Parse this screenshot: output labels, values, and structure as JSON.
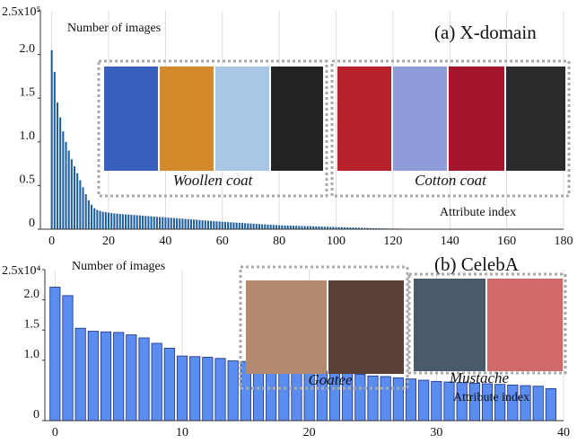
{
  "chart_data": [
    {
      "type": "bar",
      "title": "(a) X-domain",
      "y_label": "Number of images",
      "x_label": "Attribute index",
      "annotations": [
        "Woollen coat",
        "Cotton coat"
      ],
      "color": "#1f5f9e",
      "grid": true,
      "x": [
        0,
        1,
        2,
        3,
        4,
        5,
        6,
        7,
        8,
        9,
        10,
        11,
        12,
        13,
        14,
        15,
        16,
        17,
        18,
        19,
        20,
        21,
        22,
        23,
        24,
        25,
        26,
        27,
        28,
        29,
        30,
        31,
        32,
        33,
        34,
        35,
        36,
        37,
        38,
        39,
        40,
        41,
        42,
        43,
        44,
        45,
        46,
        47,
        48,
        49,
        50,
        51,
        52,
        53,
        54,
        55,
        56,
        57,
        58,
        59,
        60,
        61,
        62,
        63,
        64,
        65,
        66,
        67,
        68,
        69,
        70,
        71,
        72,
        73,
        74,
        75,
        76,
        77,
        78,
        79,
        80,
        81,
        82,
        83,
        84,
        85,
        86,
        87,
        88,
        89,
        90,
        91,
        92,
        93,
        94,
        95,
        96,
        97,
        98,
        99,
        100,
        101,
        102,
        103,
        104,
        105,
        106,
        107,
        108,
        109,
        110,
        111,
        112,
        113,
        114,
        115,
        116,
        117,
        118,
        119,
        120,
        121,
        122,
        123,
        124,
        125,
        126,
        127,
        128,
        129,
        130,
        131,
        132,
        133,
        134,
        135
      ],
      "values": [
        205000,
        180000,
        145000,
        128000,
        112000,
        100000,
        90000,
        80000,
        72000,
        64000,
        56000,
        48000,
        40000,
        33000,
        28000,
        24000,
        22000,
        21000,
        20000,
        19500,
        19000,
        18500,
        18000,
        17800,
        17500,
        17200,
        17000,
        16800,
        16500,
        16200,
        16000,
        15800,
        15500,
        15200,
        15000,
        14800,
        14500,
        14200,
        14000,
        13800,
        13500,
        13200,
        13000,
        12800,
        12500,
        12200,
        12000,
        11800,
        11500,
        11200,
        11000,
        10800,
        10500,
        10200,
        10000,
        9800,
        9500,
        9200,
        9000,
        8800,
        8500,
        8300,
        8100,
        7900,
        7700,
        7500,
        7300,
        7100,
        6900,
        6700,
        6500,
        6300,
        6100,
        5900,
        5700,
        5500,
        5300,
        5100,
        4900,
        4700,
        4500,
        4400,
        4300,
        4200,
        4100,
        4000,
        3900,
        3800,
        3700,
        3600,
        3500,
        3400,
        3300,
        3200,
        3100,
        3000,
        2900,
        2800,
        2700,
        2600,
        2500,
        2400,
        2300,
        2200,
        2100,
        2000,
        1900,
        1800,
        1700,
        1600,
        1500,
        1400,
        1300,
        1200,
        1100,
        1000,
        950,
        900,
        850,
        800,
        750,
        700,
        650,
        600,
        550,
        500,
        450,
        400,
        350,
        300,
        250,
        200,
        150,
        100,
        80,
        50
      ],
      "xlim": [
        -4,
        180
      ],
      "ylim": [
        0,
        250000
      ],
      "xticks": [
        0,
        20,
        40,
        60,
        80,
        100,
        120,
        140,
        160,
        180
      ],
      "yticks": [
        0,
        {
          "value": 50000,
          "label": "0.5"
        },
        {
          "value": 100000,
          "label": "1.0"
        },
        {
          "value": 150000,
          "label": "1.5"
        },
        {
          "value": 200000,
          "label": "2.0"
        },
        {
          "value": 250000,
          "label": "2.5x10⁵"
        }
      ]
    },
    {
      "type": "bar",
      "title": "(b) CelebA",
      "y_label": "Number of images",
      "x_label": "Attribute index",
      "annotations": [
        "Goatee",
        "Mustache"
      ],
      "color": "#5b8cf0",
      "grid": true,
      "x": [
        0,
        1,
        2,
        3,
        4,
        5,
        6,
        7,
        8,
        9,
        10,
        11,
        12,
        13,
        14,
        15,
        16,
        17,
        18,
        19,
        20,
        21,
        22,
        23,
        24,
        25,
        26,
        27,
        28,
        29,
        30,
        31,
        32,
        33,
        34,
        35,
        36,
        37,
        38,
        39
      ],
      "values": [
        22100,
        20700,
        15300,
        14800,
        14700,
        14600,
        14200,
        13700,
        12800,
        12000,
        10700,
        10600,
        10500,
        10300,
        9900,
        9800,
        9500,
        9000,
        8800,
        8800,
        8700,
        8200,
        8100,
        7800,
        7700,
        7400,
        7300,
        7100,
        6900,
        6700,
        6500,
        6400,
        6300,
        6200,
        6100,
        6000,
        5900,
        5800,
        5700,
        5300
      ],
      "xlim": [
        -0.8,
        40
      ],
      "ylim": [
        0,
        25000
      ],
      "xticks": [
        0,
        10,
        20,
        30,
        40
      ],
      "yticks": [
        0,
        {
          "value": 10000,
          "label": "1.0"
        },
        {
          "value": 15000,
          "label": "1.5"
        },
        {
          "value": 20000,
          "label": "2.0"
        },
        {
          "value": 25000,
          "label": "2.5x10⁴"
        }
      ]
    }
  ]
}
